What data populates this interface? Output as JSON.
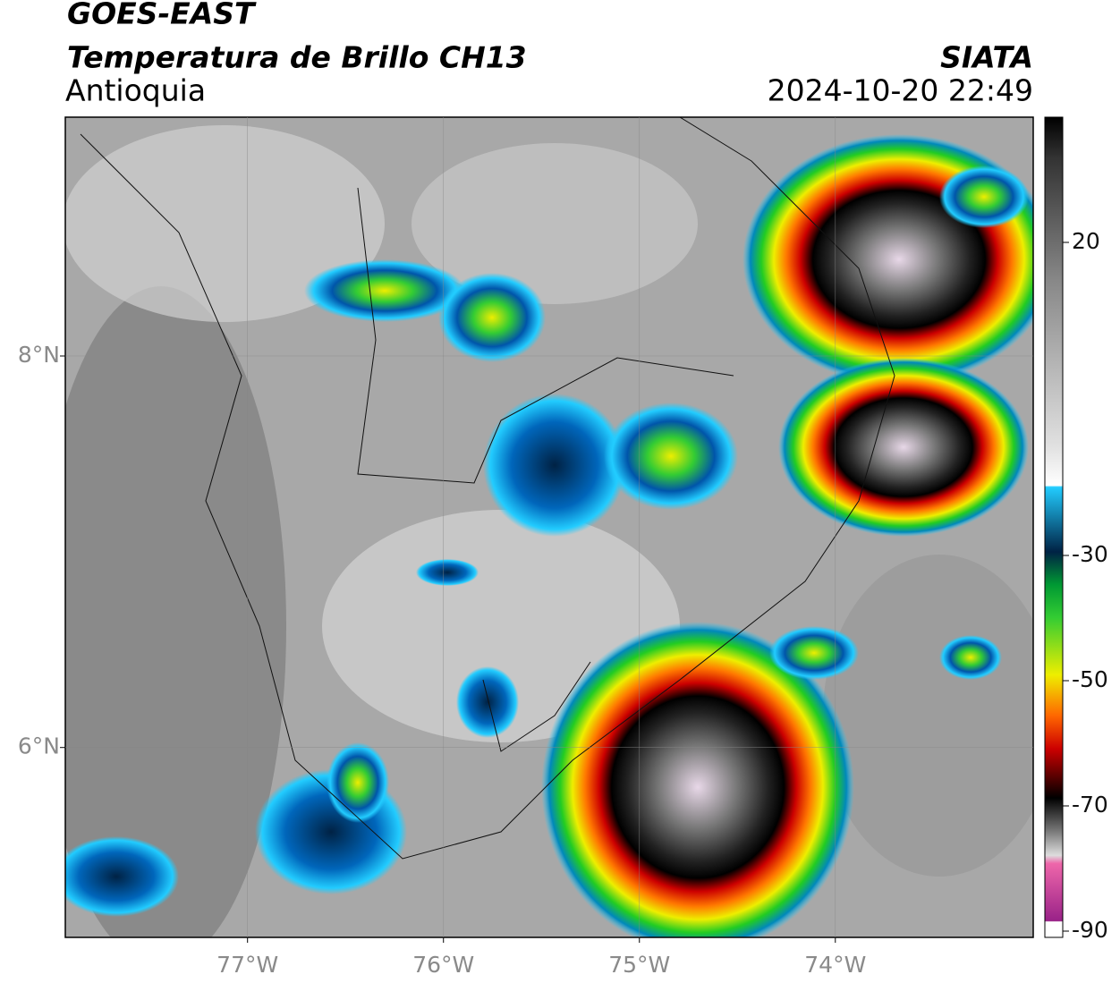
{
  "header": {
    "title": "GOES-EAST",
    "subtitle": "Temperatura de Brillo CH13",
    "region": "Antioquia",
    "source": "SIATA",
    "timestamp": "2024-10-20 22:49"
  },
  "map": {
    "xlim": [
      -77.93,
      -72.99
    ],
    "ylim": [
      5.03,
      9.22
    ],
    "xticks": [
      {
        "value": -77,
        "label": "77°W"
      },
      {
        "value": -76,
        "label": "76°W"
      },
      {
        "value": -75,
        "label": "75°W"
      },
      {
        "value": -74,
        "label": "74°W"
      }
    ],
    "yticks": [
      {
        "value": 8,
        "label": "8°N"
      },
      {
        "value": 6,
        "label": "6°N"
      }
    ],
    "grid": true
  },
  "colorbar": {
    "clim": [
      -91,
      40
    ],
    "ticks": [
      20,
      -30,
      -50,
      -70,
      -90
    ]
  }
}
